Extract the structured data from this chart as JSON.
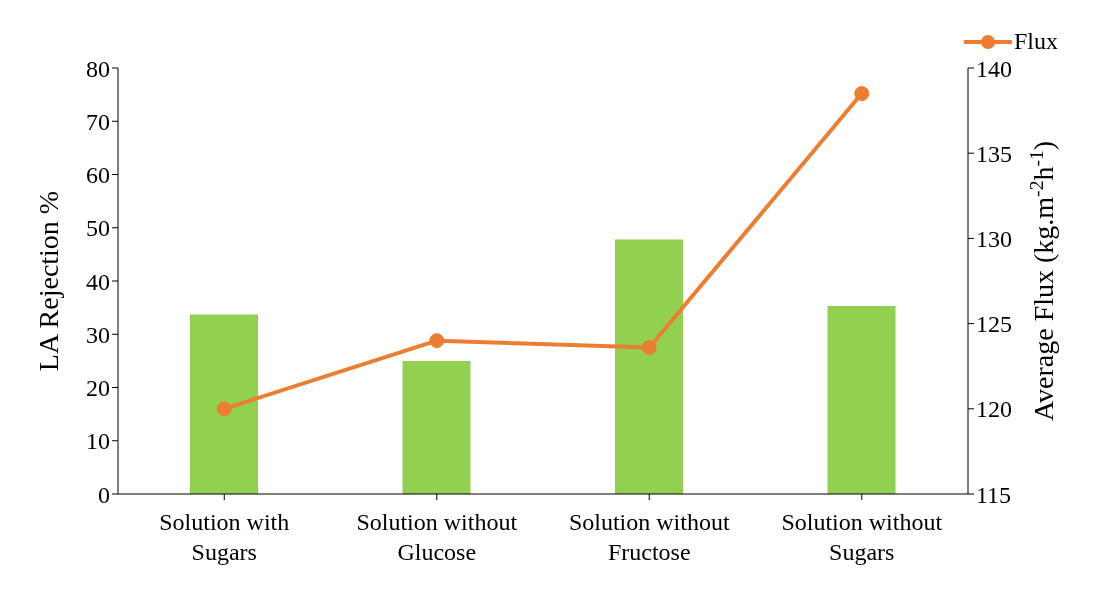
{
  "chart_data": {
    "type": "bar",
    "categories": [
      "Solution with Sugars",
      "Solution without Glucose",
      "Solution without Fructose",
      "Solution without Sugars"
    ],
    "series": [
      {
        "color": "#92d050",
        "values": [
          33.7,
          25.0,
          47.8,
          35.3
        ]
      },
      {
        "type": "line",
        "name": "Flux",
        "color": "#ed7d31",
        "axis": "y2",
        "marker": "circle",
        "values": [
          120.0,
          124.0,
          123.6,
          138.5
        ]
      }
    ],
    "ylabel": "LA  Rejection %",
    "y2label": "Average Flux (kg.m$^{-2}$h$^{-1}$)",
    "ylim": [
      0,
      80
    ],
    "yticks": [
      0,
      10,
      20,
      30,
      40,
      50,
      60,
      70,
      80
    ],
    "y2lim": [
      115,
      140
    ],
    "y2ticks": [
      115,
      120,
      125,
      130,
      135,
      140
    ],
    "legend": "top right",
    "grid": false
  }
}
